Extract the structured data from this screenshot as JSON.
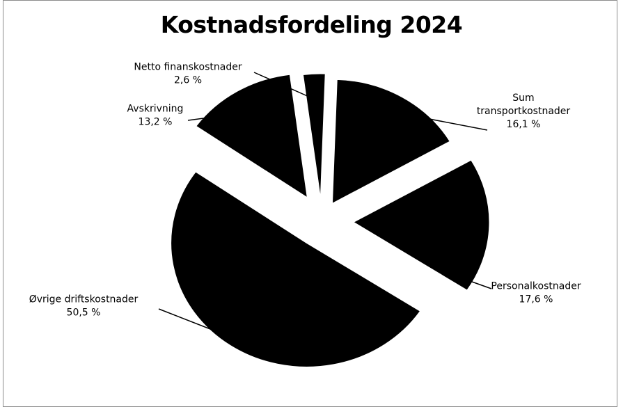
{
  "chart_data": {
    "type": "pie",
    "title": "Kostnadsfordeling 2024",
    "exploded": true,
    "style": "3d-tilted",
    "colors": {
      "slice": "#000000",
      "label": "#000000",
      "background": "#ffffff"
    },
    "slices": [
      {
        "name_lines": [
          "Sum",
          "transportkostnader"
        ],
        "value_label": "16,1 %",
        "value": 16.1
      },
      {
        "name_lines": [
          "Personalkostnader"
        ],
        "value_label": "17,6 %",
        "value": 17.6
      },
      {
        "name_lines": [
          "Øvrige driftskostnader"
        ],
        "value_label": "50,5 %",
        "value": 50.5
      },
      {
        "name_lines": [
          "Avskrivning"
        ],
        "value_label": "13,2 %",
        "value": 13.2
      },
      {
        "name_lines": [
          "Netto finanskostnader"
        ],
        "value_label": "2,6 %",
        "value": 2.6
      }
    ]
  }
}
